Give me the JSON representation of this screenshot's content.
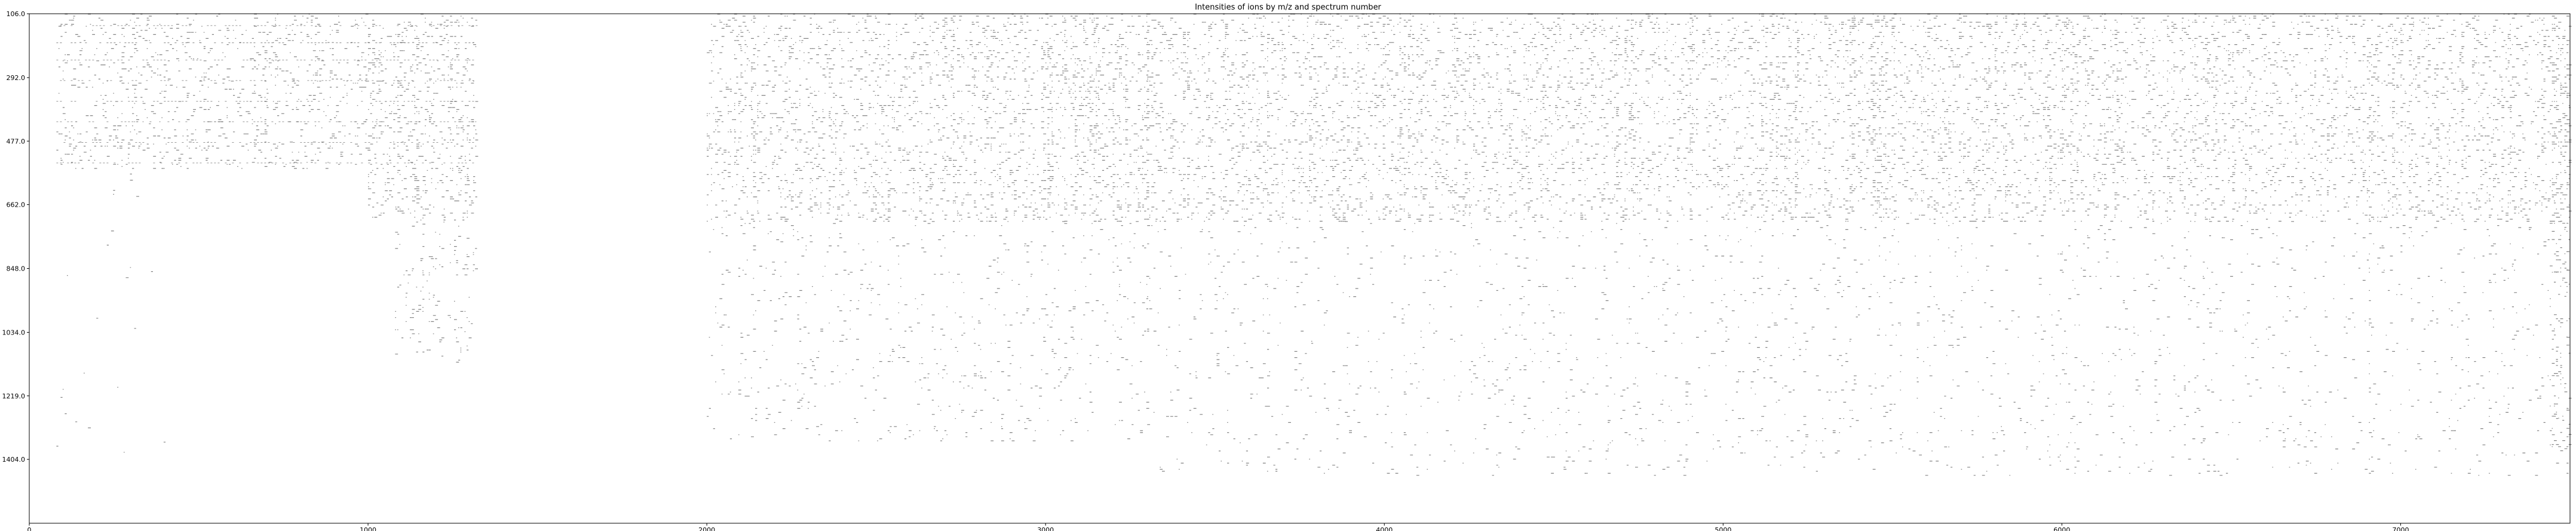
{
  "chart_data": {
    "type": "heatmap",
    "title": "Intensities of ions by m/z and spectrum number",
    "xlabel": "",
    "ylabel": "",
    "xlim": [
      0,
      7500
    ],
    "ylim": [
      106.0,
      1590.0
    ],
    "y_inverted": true,
    "grid": false,
    "legend": "none",
    "colormap": "grayscale, white = low, black = high",
    "x_ticks": [
      0,
      1000,
      2000,
      3000,
      4000,
      5000,
      6000,
      7000
    ],
    "x_tick_labels": [
      "0",
      "1000",
      "2000",
      "3000",
      "4000",
      "5000",
      "6000",
      "7000"
    ],
    "y_ticks": [
      106.0,
      292.0,
      477.0,
      662.0,
      848.0,
      1034.0,
      1219.0,
      1404.0
    ],
    "y_tick_labels": [
      "106.0",
      "292.0",
      "477.0",
      "662.0",
      "848.0",
      "1034.0",
      "1219.0",
      "1404.0"
    ],
    "regions": [
      {
        "spectra": [
          80,
          1000
        ],
        "mz": [
          106.0,
          560.0
        ],
        "density": 0.55,
        "intensity": 0.45
      },
      {
        "spectra": [
          80,
          400
        ],
        "mz": [
          560.0,
          1450.0
        ],
        "density": 0.03,
        "intensity": 0.25
      },
      {
        "spectra": [
          1000,
          1320
        ],
        "mz": [
          106.0,
          700.0
        ],
        "density": 0.75,
        "intensity": 0.7
      },
      {
        "spectra": [
          1080,
          1320
        ],
        "mz": [
          700.0,
          1120.0
        ],
        "density": 0.35,
        "intensity": 0.55
      },
      {
        "spectra": [
          2000,
          3300
        ],
        "mz": [
          106.0,
          710.0
        ],
        "density": 0.7,
        "intensity": 0.6
      },
      {
        "spectra": [
          2000,
          3300
        ],
        "mz": [
          710.0,
          1350.0
        ],
        "density": 0.18,
        "intensity": 0.4
      },
      {
        "spectra": [
          3300,
          7500
        ],
        "mz": [
          106.0,
          710.0
        ],
        "density": 0.7,
        "intensity": 0.62
      },
      {
        "spectra": [
          3300,
          7500
        ],
        "mz": [
          710.0,
          1450.0
        ],
        "density": 0.15,
        "intensity": 0.42
      },
      {
        "spectra": [
          7440,
          7500
        ],
        "mz": [
          106.0,
          1400.0
        ],
        "density": 0.6,
        "intensity": 0.6
      }
    ]
  }
}
